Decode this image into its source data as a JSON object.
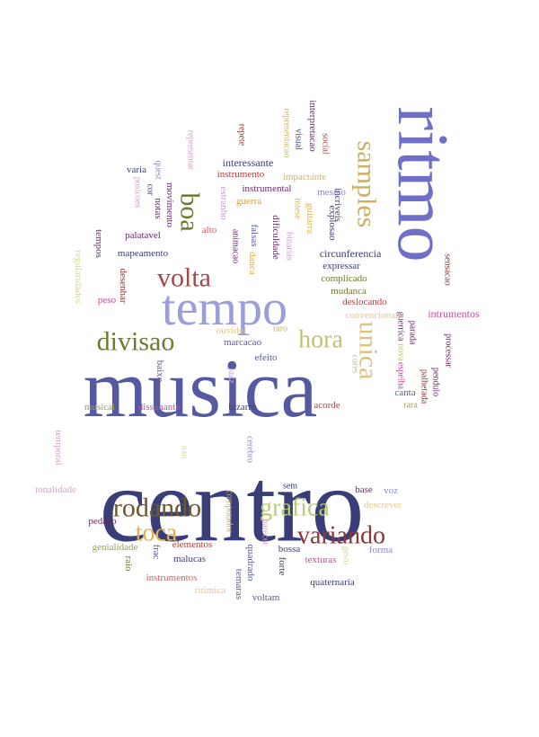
{
  "words": [
    {
      "text": "centro",
      "color": "#3a3e78"
    },
    {
      "text": "musica",
      "color": "#555aa0"
    },
    {
      "text": "ritmo",
      "color": "#6e70c8"
    },
    {
      "text": "tempo",
      "color": "#9b9fd8"
    },
    {
      "text": "samples",
      "color": "#cfae5e"
    },
    {
      "text": "unica",
      "color": "#dcc27a"
    },
    {
      "text": "hora",
      "color": "#c4c07a"
    },
    {
      "text": "divisao",
      "color": "#6e7a34"
    },
    {
      "text": "volta",
      "color": "#aa4444"
    },
    {
      "text": "boa",
      "color": "#6e7a34"
    },
    {
      "text": "rodando",
      "color": "#6e5a2a"
    },
    {
      "text": "grafica",
      "color": "#b9cc72"
    },
    {
      "text": "toca",
      "color": "#e0b050"
    },
    {
      "text": "variando",
      "color": "#8a3636"
    },
    {
      "text": "intrumentos",
      "color": "#c84a9a"
    },
    {
      "text": "sensacao",
      "color": "#8a3636"
    },
    {
      "text": "processar",
      "color": "#6a2a6a"
    },
    {
      "text": "pendulo",
      "color": "#6a2a6a"
    },
    {
      "text": "palhetada",
      "color": "#8a3636"
    },
    {
      "text": "parada",
      "color": "#6a2a6a"
    },
    {
      "text": "guerrica",
      "color": "#6a2a6a"
    },
    {
      "text": "nova",
      "color": "#b9cc72"
    },
    {
      "text": "espelha",
      "color": "#c84a9a"
    },
    {
      "text": "canta",
      "color": "#555aa0"
    },
    {
      "text": "rara",
      "color": "#9ca040"
    },
    {
      "text": "interpretacao",
      "color": "#6a2a6a"
    },
    {
      "text": "representacao",
      "color": "#d8b45a"
    },
    {
      "text": "visual",
      "color": "#3a3e78"
    },
    {
      "text": "social",
      "color": "#b04040"
    },
    {
      "text": "incriveis",
      "color": "#3a3e78"
    },
    {
      "text": "explosao",
      "color": "#3a3e78"
    },
    {
      "text": "impactante",
      "color": "#d8b45a"
    },
    {
      "text": "mesmo",
      "color": "#8a8ad0"
    },
    {
      "text": "guitarra",
      "color": "#d8b45a"
    },
    {
      "text": "mtese",
      "color": "#d8b45a"
    },
    {
      "text": "binarias",
      "color": "#c8a0d0"
    },
    {
      "text": "repete",
      "color": "#8a3636"
    },
    {
      "text": "interessante",
      "color": "#3a3e78"
    },
    {
      "text": "instrumento",
      "color": "#b04040"
    },
    {
      "text": "instrumental",
      "color": "#6a2a6a"
    },
    {
      "text": "guerra",
      "color": "#cfa040"
    },
    {
      "text": "representar",
      "color": "#d8a0c8"
    },
    {
      "text": "quest",
      "color": "#8a8ad0"
    },
    {
      "text": "varia",
      "color": "#3a3e78"
    },
    {
      "text": "cor",
      "color": "#3a3e78"
    },
    {
      "text": "posicoes",
      "color": "#d8a0c8"
    },
    {
      "text": "notas",
      "color": "#6a2a6a"
    },
    {
      "text": "movimento",
      "color": "#6a2a6a"
    },
    {
      "text": "estranho",
      "color": "#c8a0d0"
    },
    {
      "text": "palatavel",
      "color": "#6a2a6a"
    },
    {
      "text": "alto",
      "color": "#d86060"
    },
    {
      "text": "animacao",
      "color": "#6a2a6a"
    },
    {
      "text": "falsas",
      "color": "#555aa0"
    },
    {
      "text": "danca",
      "color": "#e0b050"
    },
    {
      "text": "dificuldade",
      "color": "#6a2a6a"
    },
    {
      "text": "circunferencia",
      "color": "#3a3e78"
    },
    {
      "text": "expressar",
      "color": "#3a3e78"
    },
    {
      "text": "complicado",
      "color": "#6e7a34"
    },
    {
      "text": "mudanca",
      "color": "#6e7a34"
    },
    {
      "text": "deslocando",
      "color": "#b04040"
    },
    {
      "text": "convencionais",
      "color": "#e0c88a"
    },
    {
      "text": "tempos",
      "color": "#6a2a6a"
    },
    {
      "text": "regularidades",
      "color": "#d8d4a0"
    },
    {
      "text": "mapeamento",
      "color": "#3a3e78"
    },
    {
      "text": "desenhar",
      "color": "#8a3636"
    },
    {
      "text": "peso",
      "color": "#c84a9a"
    },
    {
      "text": "ouvido",
      "color": "#e0c88a"
    },
    {
      "text": "marcacao",
      "color": "#555aa0"
    },
    {
      "text": "raro",
      "color": "#c0b070"
    },
    {
      "text": "efeito",
      "color": "#555aa0"
    },
    {
      "text": "cores",
      "color": "#c0c0a0"
    },
    {
      "text": "baixo",
      "color": "#555aa0"
    },
    {
      "text": "jazz",
      "color": "#c8a0d0"
    },
    {
      "text": "musical",
      "color": "#9ca040"
    },
    {
      "text": "dissonante",
      "color": "#c84a9a"
    },
    {
      "text": "bizarro",
      "color": "#3a3e78"
    },
    {
      "text": "acorde",
      "color": "#b04040"
    },
    {
      "text": "temporal",
      "color": "#d8a0c8"
    },
    {
      "text": "nao",
      "color": "#d8d4a0"
    },
    {
      "text": "cerebro",
      "color": "#8a8ad0"
    },
    {
      "text": "tonalidade",
      "color": "#d8a0c8"
    },
    {
      "text": "sem",
      "color": "#3a3e78"
    },
    {
      "text": "base",
      "color": "#6a2a6a"
    },
    {
      "text": "voz",
      "color": "#8a8ad0"
    },
    {
      "text": "descrever",
      "color": "#e0c88a"
    },
    {
      "text": "computador",
      "color": "#c0b070"
    },
    {
      "text": "pedaco",
      "color": "#6a2a6a"
    },
    {
      "text": "parecer",
      "color": "#d8a0c8"
    },
    {
      "text": "genialidade",
      "color": "#9ca040"
    },
    {
      "text": "elementos",
      "color": "#b04040"
    },
    {
      "text": "frac",
      "color": "#555aa0"
    },
    {
      "text": "quadrado",
      "color": "#555aa0"
    },
    {
      "text": "bossa",
      "color": "#3a3e78"
    },
    {
      "text": "forte",
      "color": "#3a3e78"
    },
    {
      "text": "texturas",
      "color": "#c84a9a"
    },
    {
      "text": "gesto",
      "color": "#d8d4a0"
    },
    {
      "text": "forma",
      "color": "#8a8ad0"
    },
    {
      "text": "malucas",
      "color": "#3a3e78"
    },
    {
      "text": "raio",
      "color": "#6e7a34"
    },
    {
      "text": "instrumentos",
      "color": "#d86060"
    },
    {
      "text": "ritimica",
      "color": "#e0c88a"
    },
    {
      "text": "temaras",
      "color": "#555aa0"
    },
    {
      "text": "voltam",
      "color": "#555aa0"
    },
    {
      "text": "quaternaria",
      "color": "#3a3e78"
    }
  ]
}
